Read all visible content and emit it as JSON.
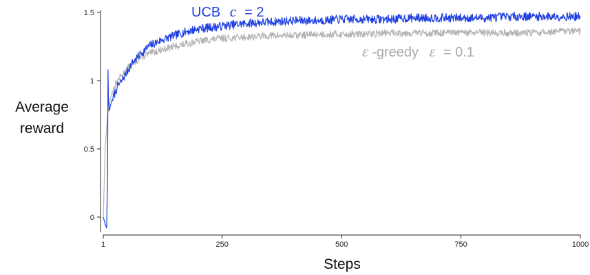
{
  "chart_data": {
    "type": "line",
    "xlabel": "Steps",
    "ylabel_lines": [
      "Average",
      "reward"
    ],
    "xlim": [
      1,
      1000
    ],
    "ylim": [
      0,
      1.5
    ],
    "x_ticks": [
      1,
      250,
      500,
      750,
      1000
    ],
    "y_ticks": [
      0,
      0.5,
      1,
      1.5
    ],
    "y_tick_labels": [
      "0",
      "0.5",
      "1",
      "1.5"
    ],
    "grid": false,
    "series": [
      {
        "name": "UCB c = 2",
        "label_parts": {
          "prefix": "UCB",
          "symbol": "c",
          "suffix": "= 2"
        },
        "color": "#1f3fe0",
        "x": [
          1,
          5,
          8,
          10,
          11,
          12,
          13,
          14,
          16,
          20,
          30,
          40,
          50,
          60,
          80,
          100,
          125,
          150,
          175,
          200,
          250,
          300,
          350,
          400,
          450,
          500,
          550,
          600,
          650,
          700,
          750,
          800,
          850,
          900,
          950,
          1000
        ],
        "y": [
          0.0,
          -0.05,
          -0.08,
          0.3,
          1.08,
          0.85,
          0.8,
          0.78,
          0.82,
          0.86,
          0.95,
          1.0,
          1.06,
          1.12,
          1.2,
          1.26,
          1.3,
          1.33,
          1.36,
          1.38,
          1.4,
          1.42,
          1.43,
          1.44,
          1.44,
          1.45,
          1.45,
          1.45,
          1.46,
          1.46,
          1.46,
          1.46,
          1.47,
          1.47,
          1.47,
          1.47
        ]
      },
      {
        "name": "ε-greedy ε = 0.1",
        "label_parts": {
          "symbol1": "ε",
          "middle": "-greedy",
          "symbol2": "ε",
          "suffix": "= 0.1"
        },
        "color": "#b3b3b3",
        "x": [
          1,
          5,
          10,
          15,
          20,
          30,
          40,
          50,
          60,
          80,
          100,
          125,
          150,
          175,
          200,
          250,
          300,
          350,
          400,
          450,
          500,
          550,
          600,
          650,
          700,
          750,
          800,
          850,
          900,
          950,
          1000
        ],
        "y": [
          0.0,
          0.5,
          0.75,
          0.85,
          0.92,
          1.0,
          1.04,
          1.08,
          1.12,
          1.17,
          1.2,
          1.23,
          1.25,
          1.27,
          1.29,
          1.31,
          1.32,
          1.33,
          1.33,
          1.34,
          1.34,
          1.34,
          1.35,
          1.35,
          1.35,
          1.35,
          1.35,
          1.35,
          1.35,
          1.36,
          1.36
        ]
      }
    ]
  }
}
